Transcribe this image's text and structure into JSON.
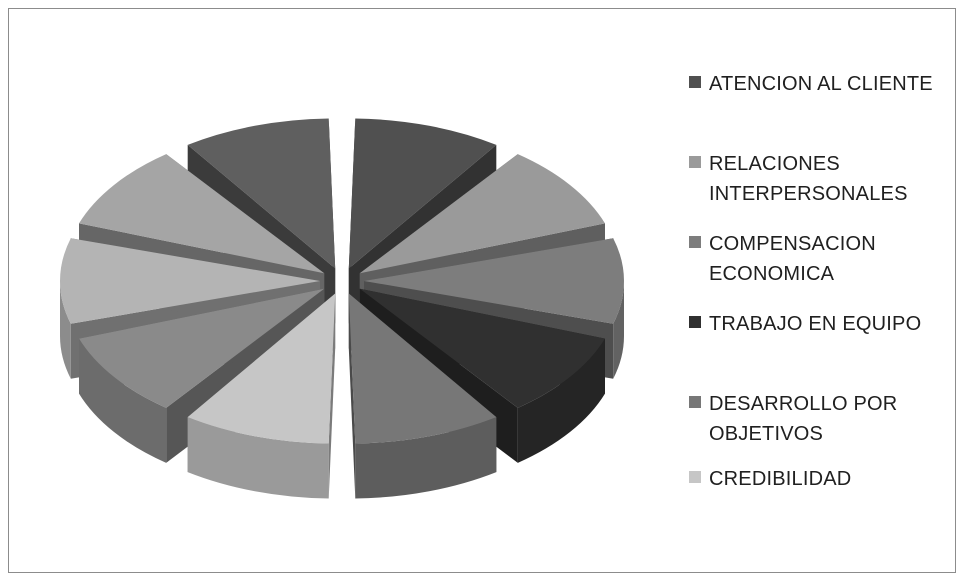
{
  "chart_data": {
    "type": "pie",
    "style": "3d-exploded",
    "title": "",
    "legend_position": "right",
    "categories": [
      "ATENCION AL CLIENTE",
      "RELACIONES INTERPERSONALES",
      "COMPENSACION ECONOMICA",
      "TRABAJO EN EQUIPO",
      "DESARROLLO POR OBJETIVOS",
      "CREDIBILIDAD",
      "CREDIBILIDAD",
      "CREDIBILIDAD",
      "CREDIBILIDAD",
      "CREDIBILIDAD"
    ],
    "legend": [
      {
        "label": "ATENCION AL CLIENTE",
        "color": "#505050"
      },
      {
        "label": "RELACIONES\nINTERPERSONALES",
        "color": "#9a9a9a"
      },
      {
        "label": "COMPENSACION\nECONOMICA",
        "color": "#7d7d7d"
      },
      {
        "label": "TRABAJO EN EQUIPO",
        "color": "#303030"
      },
      {
        "label": "DESARROLLO POR\nOBJETIVOS",
        "color": "#777777"
      },
      {
        "label": "CREDIBILIDAD",
        "color": "#c6c6c6"
      }
    ],
    "values": [
      10,
      10,
      10,
      10,
      10,
      10,
      10,
      10,
      10,
      10
    ],
    "colors": [
      "#505050",
      "#9a9a9a",
      "#7d7d7d",
      "#303030",
      "#777777",
      "#c6c6c6",
      "#8a8a8a",
      "#b4b4b4",
      "#a5a5a5",
      "#5f5f5f"
    ]
  }
}
